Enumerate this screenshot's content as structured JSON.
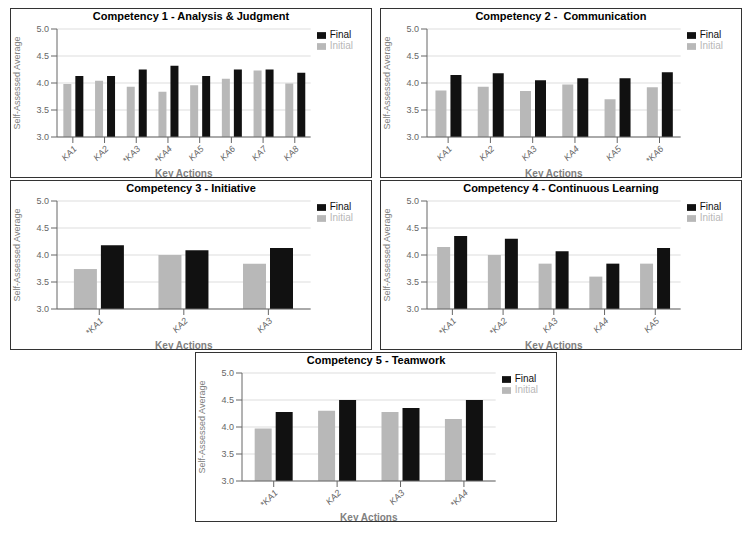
{
  "chart_data": [
    {
      "type": "bar",
      "title": "Competency 1 - Analysis & Judgment",
      "categories": [
        "KA1",
        "KA2",
        "*KA3",
        "*KA4",
        "KA5",
        "KA6",
        "KA7",
        "KA8"
      ],
      "series": [
        {
          "name": "Initial",
          "color": "#b8b8b8",
          "values": [
            3.98,
            4.04,
            3.93,
            3.84,
            3.96,
            4.08,
            4.23,
            3.99
          ]
        },
        {
          "name": "Final",
          "color": "#111111",
          "values": [
            4.13,
            4.13,
            4.25,
            4.32,
            4.13,
            4.25,
            4.25,
            4.19
          ]
        }
      ],
      "xlabel": "Key Actions",
      "ylabel": "Self-Assessed Average",
      "ylim": [
        3.0,
        5.0
      ],
      "yticks": [
        {
          "value": 3.0,
          "label": "3.0"
        },
        3.5,
        {
          "value": 4.0,
          "label": "4.0"
        },
        4.5,
        {
          "value": 5.0,
          "label": "5.0"
        }
      ],
      "grid": true,
      "legend": "upper right"
    },
    {
      "type": "bar",
      "title": "Competency 2 -  Communication",
      "categories": [
        "KA1",
        "KA2",
        "KA3",
        "KA4",
        "KA5",
        "*KA6"
      ],
      "series": [
        {
          "name": "Initial",
          "color": "#b8b8b8",
          "values": [
            3.86,
            3.93,
            3.85,
            3.97,
            3.7,
            3.92
          ]
        },
        {
          "name": "Final",
          "color": "#111111",
          "values": [
            4.15,
            4.18,
            4.05,
            4.09,
            4.09,
            4.2
          ]
        }
      ],
      "xlabel": "Key Actions",
      "ylabel": "Self-Assessed Average",
      "ylim": [
        3.0,
        5.0
      ],
      "yticks": [
        {
          "value": 3.0,
          "label": "3.0"
        },
        3.5,
        {
          "value": 4.0,
          "label": "4.0"
        },
        4.5,
        {
          "value": 5.0,
          "label": "5.0"
        }
      ],
      "grid": true,
      "legend": "upper right"
    },
    {
      "type": "bar",
      "title": "Competency 3 - Initiative",
      "categories": [
        "*KA1",
        "KA2",
        "KA3"
      ],
      "series": [
        {
          "name": "Initial",
          "color": "#b8b8b8",
          "values": [
            3.74,
            4.0,
            3.84
          ]
        },
        {
          "name": "Final",
          "color": "#111111",
          "values": [
            4.18,
            4.09,
            4.13
          ]
        }
      ],
      "xlabel": "Key Actions",
      "ylabel": "Self-Assessed Average",
      "ylim": [
        3.0,
        5.0
      ],
      "yticks": [
        {
          "value": 3.0,
          "label": "3.0"
        },
        3.5,
        {
          "value": 4.0,
          "label": "4.0"
        },
        4.5,
        {
          "value": 5.0,
          "label": "5.0"
        }
      ],
      "grid": true,
      "legend": "upper right"
    },
    {
      "type": "bar",
      "title": "Competency 4 - Continuous Learning",
      "categories": [
        "*KA1",
        "*KA2",
        "KA3",
        "KA4",
        "KA5"
      ],
      "series": [
        {
          "name": "Initial",
          "color": "#b8b8b8",
          "values": [
            4.15,
            4.0,
            3.84,
            3.6,
            3.84
          ]
        },
        {
          "name": "Final",
          "color": "#111111",
          "values": [
            4.35,
            4.3,
            4.07,
            3.84,
            4.13
          ]
        }
      ],
      "xlabel": "Key Actions",
      "ylabel": "Self-Assessed Average",
      "ylim": [
        3.0,
        5.0
      ],
      "yticks": [
        {
          "value": 3.0,
          "label": "3.0"
        },
        3.5,
        {
          "value": 4.0,
          "label": "4.0"
        },
        4.5,
        {
          "value": 5.0,
          "label": "5.0"
        }
      ],
      "grid": true,
      "legend": "upper right"
    },
    {
      "type": "bar",
      "title": "Competency 5 - Teamwork",
      "categories": [
        "*KA1",
        "KA2",
        "KA3",
        "*KA4"
      ],
      "series": [
        {
          "name": "Initial",
          "color": "#b8b8b8",
          "values": [
            3.97,
            4.3,
            4.28,
            4.15
          ]
        },
        {
          "name": "Final",
          "color": "#111111",
          "values": [
            4.28,
            4.5,
            4.35,
            4.5
          ]
        }
      ],
      "xlabel": "Key Actions",
      "ylabel": "Self-Assessed Average",
      "ylim": [
        3.0,
        5.0
      ],
      "yticks": [
        {
          "value": 3.0,
          "label": "3.0"
        },
        3.5,
        {
          "value": 4.0,
          "label": "4.0"
        },
        4.5,
        {
          "value": 5.0,
          "label": "5.0"
        }
      ],
      "grid": true,
      "legend": "upper right"
    }
  ]
}
